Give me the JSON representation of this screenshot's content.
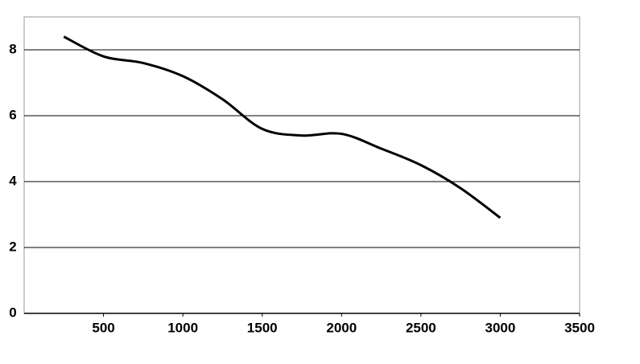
{
  "chart_data": {
    "type": "line",
    "smooth": true,
    "grid": true,
    "x": [
      250,
      500,
      750,
      1000,
      1250,
      1500,
      1750,
      2000,
      2250,
      2500,
      2750,
      3000
    ],
    "series": [
      {
        "color": "#000000",
        "values": [
          8.4,
          7.8,
          7.6,
          7.2,
          6.5,
          5.6,
          5.4,
          5.45,
          5.0,
          4.5,
          3.8,
          2.9
        ]
      }
    ],
    "xlim": [
      0,
      3500
    ],
    "xticks": [
      500,
      1000,
      1500,
      2000,
      2500,
      3000,
      3500
    ],
    "ylim": [
      0,
      9
    ],
    "yticks": [
      0,
      2,
      4,
      6,
      8
    ]
  }
}
